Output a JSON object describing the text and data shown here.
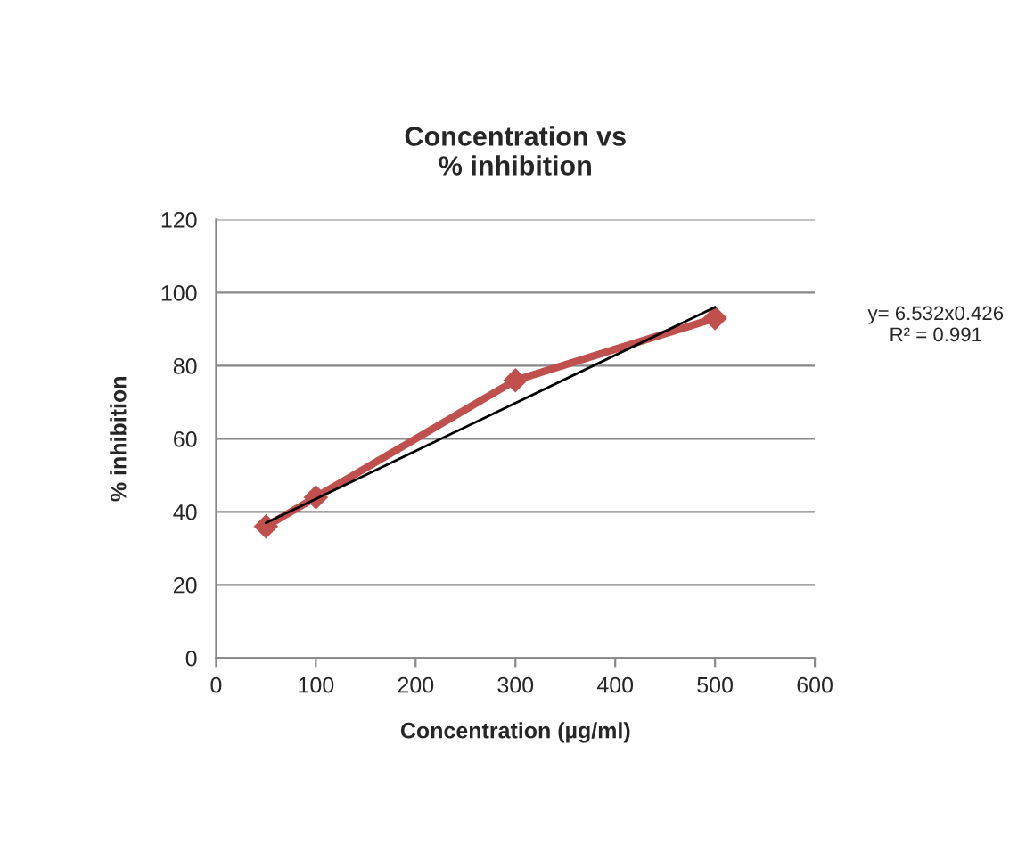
{
  "chart_data": {
    "type": "line",
    "title": "Concentration vs\n% inhibition",
    "xlabel": "Concentration (µg/ml)",
    "ylabel": "% inhibition",
    "x": [
      50,
      100,
      300,
      500
    ],
    "series": [
      {
        "color": "#c0504d",
        "values": [
          36,
          44,
          76,
          93
        ],
        "marker": "diamond"
      },
      {
        "type": "line",
        "color": "#000000",
        "x": [
          50,
          500
        ],
        "values": [
          37,
          96
        ],
        "marker": "none"
      }
    ],
    "annotations": [
      "y= 6.532x0.426\nR² = 0.991"
    ],
    "xlim": [
      0,
      600
    ],
    "xticks": [
      0,
      100,
      200,
      300,
      400,
      500,
      600
    ],
    "ylim": [
      0,
      120
    ],
    "yticks": [
      0,
      20,
      40,
      60,
      80,
      100,
      120
    ],
    "grid": "y",
    "legend": false
  }
}
